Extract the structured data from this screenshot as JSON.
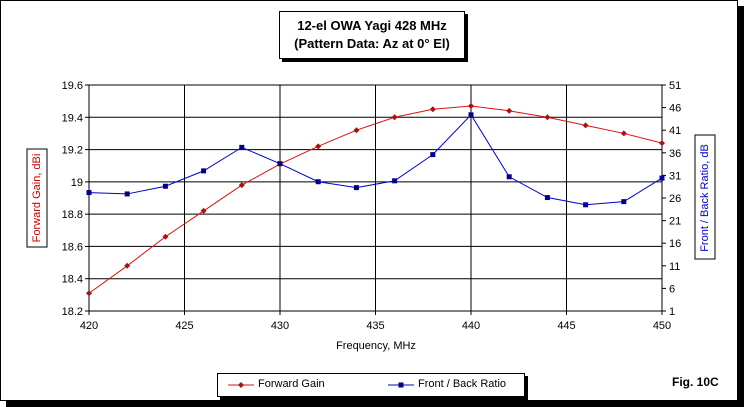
{
  "chart_data": {
    "type": "line",
    "title": "12-el OWA Yagi 428 MHz",
    "subtitle": "(Pattern Data: Az at 0° El)",
    "xlabel": "Frequency, MHz",
    "ylabel": "Forward Gain, dBi",
    "y2label": "Front / Back Ratio, dB",
    "xlim": [
      420,
      450
    ],
    "xticks": [
      "420",
      "425",
      "430",
      "435",
      "440",
      "445",
      "450"
    ],
    "ylim": [
      18.2,
      19.6
    ],
    "yticks": [
      "18.2",
      "18.4",
      "18.6",
      "18.8",
      "19",
      "19.2",
      "19.4",
      "19.6"
    ],
    "y2lim": [
      1,
      51
    ],
    "y2ticks": [
      "1",
      "6",
      "11",
      "16",
      "21",
      "26",
      "31",
      "36",
      "41",
      "46",
      "51"
    ],
    "grid": true,
    "legend_position": "bottom",
    "series": [
      {
        "name": "Forward Gain",
        "axis": "left",
        "color": "#dd1111",
        "x": [
          420,
          422,
          424,
          426,
          428,
          430,
          432,
          434,
          436,
          438,
          440,
          442,
          444,
          446,
          448,
          450
        ],
        "values": [
          18.31,
          18.48,
          18.66,
          18.82,
          18.98,
          19.11,
          19.22,
          19.32,
          19.4,
          19.45,
          19.47,
          19.44,
          19.4,
          19.35,
          19.3,
          19.24
        ]
      },
      {
        "name": "Front / Back Ratio",
        "axis": "right",
        "color": "#0000cc",
        "x": [
          420,
          422,
          424,
          426,
          428,
          430,
          432,
          434,
          436,
          438,
          440,
          442,
          444,
          446,
          448,
          450
        ],
        "values": [
          27.2,
          26.9,
          28.6,
          32.0,
          37.2,
          33.6,
          29.6,
          28.3,
          29.8,
          35.6,
          44.4,
          30.7,
          26.1,
          24.5,
          25.2,
          30.4
        ]
      }
    ]
  },
  "figure_label": "Fig. 10C"
}
